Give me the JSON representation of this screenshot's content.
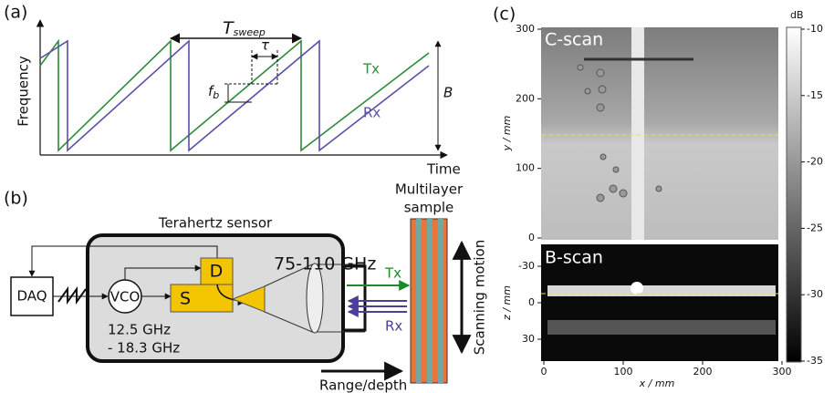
{
  "panel_a": {
    "label": "(a)",
    "y_axis": "Frequency",
    "x_axis": "Time",
    "period_symbol": "T",
    "period_subscript": "sweep",
    "delay": "τ",
    "beat_symbol": "f",
    "beat_subscript": "b",
    "bandwidth": "B",
    "tx": "Tx",
    "rx": "Rx"
  },
  "panel_b": {
    "label": "(b)",
    "daq": "DAQ",
    "vco": "VCO",
    "detector": "D",
    "source": "S",
    "band": "75-110 GHz",
    "vco_low": "12.5 GHz",
    "vco_high": "- 18.3 GHz",
    "sensor": "Terahertz sensor",
    "sample_1": "Multilayer",
    "sample_2": "sample",
    "tx": "Tx",
    "rx": "Rx",
    "motion": "Scanning motion",
    "range": "Range/depth"
  },
  "panel_c": {
    "label": "(c)",
    "c_scan": "C-scan",
    "b_scan": "B-scan",
    "x_label": "x / mm",
    "y_label": "y / mm",
    "z_label": "z / mm",
    "x_ticks": [
      0,
      100,
      200,
      300
    ],
    "y_ticks": [
      0,
      100,
      200,
      300
    ],
    "z_ticks": [
      -30,
      0,
      30
    ],
    "colorbar_unit": "dB",
    "colorbar_ticks": [
      -10,
      -15,
      -20,
      -25,
      -30,
      -35
    ]
  }
}
